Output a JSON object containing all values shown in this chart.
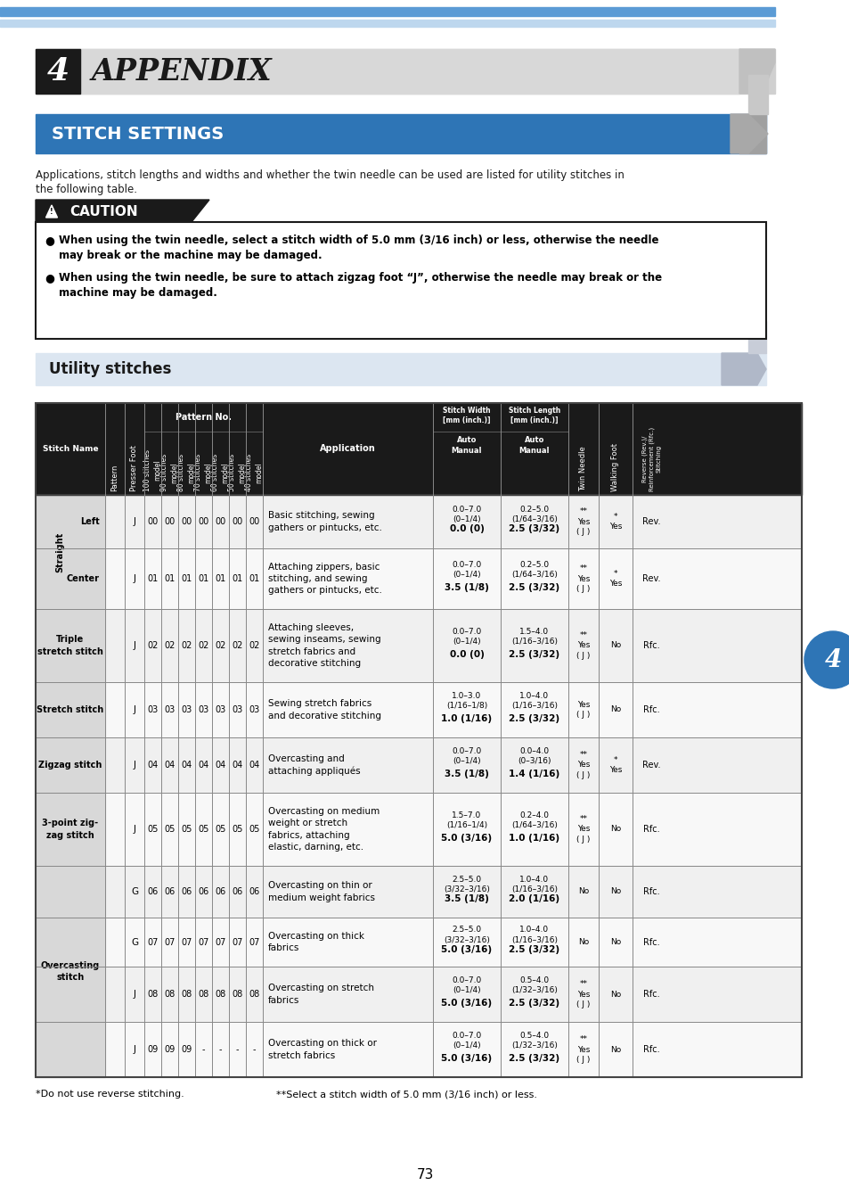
{
  "page_bg": "#ffffff",
  "appendix_number": "4",
  "appendix_title": "APPENDIX",
  "stitch_settings_text": "STITCH SETTINGS",
  "body_text1": "Applications, stitch lengths and widths and whether the twin needle can be used are listed for utility stitches in",
  "body_text2": "the following table.",
  "caution_text": "CAUTION",
  "caution_bullet1a": "When using the twin needle, select a stitch width of 5.0 mm (3/16 inch) or less, otherwise the needle",
  "caution_bullet1b": "may break or the machine may be damaged.",
  "caution_bullet2a": "When using the twin needle, be sure to attach zigzag foot “J”, otherwise the needle may break or the",
  "caution_bullet2b": "machine may be damaged.",
  "utility_text": "Utility stitches",
  "footer_note1": "*Do not use reverse stitching.",
  "footer_note2": "**Select a stitch width of 5.0 mm (3/16 inch) or less.",
  "page_number": "73",
  "rows": [
    {
      "stitch_group": "Straight",
      "stitch_name": "Left",
      "presser": "J",
      "pattern_nos": [
        "00",
        "00",
        "00",
        "00",
        "00",
        "00",
        "00"
      ],
      "application": "Basic stitching, sewing\ngathers or pintucks, etc.",
      "width_top": "0.0 (0)",
      "width_bot": "0.0–7.0\n(0–1/4)",
      "length_top": "2.5 (3/32)",
      "length_bot": "0.2–5.0\n(1/64–3/16)",
      "twin": "**\nYes\n( J )",
      "walking": "*\nYes",
      "reverse": "Rev."
    },
    {
      "stitch_group": "Straight",
      "stitch_name": "Center",
      "presser": "J",
      "pattern_nos": [
        "01",
        "01",
        "01",
        "01",
        "01",
        "01",
        "01"
      ],
      "application": "Attaching zippers, basic\nstitching, and sewing\ngathers or pintucks, etc.",
      "width_top": "3.5 (1/8)",
      "width_bot": "0.0–7.0\n(0–1/4)",
      "length_top": "2.5 (3/32)",
      "length_bot": "0.2–5.0\n(1/64–3/16)",
      "twin": "**\nYes\n( J )",
      "walking": "*\nYes",
      "reverse": "Rev."
    },
    {
      "stitch_group": "Triple\nstretch stitch",
      "stitch_name": "",
      "presser": "J",
      "pattern_nos": [
        "02",
        "02",
        "02",
        "02",
        "02",
        "02",
        "02"
      ],
      "application": "Attaching sleeves,\nsewing inseams, sewing\nstretch fabrics and\ndecorative stitching",
      "width_top": "0.0 (0)",
      "width_bot": "0.0–7.0\n(0–1/4)",
      "length_top": "2.5 (3/32)",
      "length_bot": "1.5–4.0\n(1/16–3/16)",
      "twin": "**\nYes\n( J )",
      "walking": "No",
      "reverse": "Rfc."
    },
    {
      "stitch_group": "Stretch stitch",
      "stitch_name": "",
      "presser": "J",
      "pattern_nos": [
        "03",
        "03",
        "03",
        "03",
        "03",
        "03",
        "03"
      ],
      "application": "Sewing stretch fabrics\nand decorative stitching",
      "width_top": "1.0 (1/16)",
      "width_bot": "1.0–3.0\n(1/16–1/8)",
      "length_top": "2.5 (3/32)",
      "length_bot": "1.0–4.0\n(1/16–3/16)",
      "twin": "Yes\n( J )",
      "walking": "No",
      "reverse": "Rfc."
    },
    {
      "stitch_group": "Zigzag stitch",
      "stitch_name": "",
      "presser": "J",
      "pattern_nos": [
        "04",
        "04",
        "04",
        "04",
        "04",
        "04",
        "04"
      ],
      "application": "Overcasting and\nattaching appliqués",
      "width_top": "3.5 (1/8)",
      "width_bot": "0.0–7.0\n(0–1/4)",
      "length_top": "1.4 (1/16)",
      "length_bot": "0.0–4.0\n(0–3/16)",
      "twin": "**\nYes\n( J )",
      "walking": "*\nYes",
      "reverse": "Rev."
    },
    {
      "stitch_group": "3-point zig-\nzag stitch",
      "stitch_name": "",
      "presser": "J",
      "pattern_nos": [
        "05",
        "05",
        "05",
        "05",
        "05",
        "05",
        "05"
      ],
      "application": "Overcasting on medium\nweight or stretch\nfabrics, attaching\nelastic, darning, etc.",
      "width_top": "5.0 (3/16)",
      "width_bot": "1.5–7.0\n(1/16–1/4)",
      "length_top": "1.0 (1/16)",
      "length_bot": "0.2–4.0\n(1/64–3/16)",
      "twin": "**\nYes\n( J )",
      "walking": "No",
      "reverse": "Rfc."
    },
    {
      "stitch_group": "Overcasting\nstitch",
      "stitch_name": "",
      "presser": "G",
      "pattern_nos": [
        "06",
        "06",
        "06",
        "06",
        "06",
        "06",
        "06"
      ],
      "application": "Overcasting on thin or\nmedium weight fabrics",
      "width_top": "3.5 (1/8)",
      "width_bot": "2.5–5.0\n(3/32–3/16)",
      "length_top": "2.0 (1/16)",
      "length_bot": "1.0–4.0\n(1/16–3/16)",
      "twin": "No",
      "walking": "No",
      "reverse": "Rfc."
    },
    {
      "stitch_group": "Overcasting\nstitch",
      "stitch_name": "",
      "presser": "G",
      "pattern_nos": [
        "07",
        "07",
        "07",
        "07",
        "07",
        "07",
        "07"
      ],
      "application": "Overcasting on thick\nfabrics",
      "width_top": "5.0 (3/16)",
      "width_bot": "2.5–5.0\n(3/32–3/16)",
      "length_top": "2.5 (3/32)",
      "length_bot": "1.0–4.0\n(1/16–3/16)",
      "twin": "No",
      "walking": "No",
      "reverse": "Rfc."
    },
    {
      "stitch_group": "Overcasting\nstitch",
      "stitch_name": "",
      "presser": "J",
      "pattern_nos": [
        "08",
        "08",
        "08",
        "08",
        "08",
        "08",
        "08"
      ],
      "application": "Overcasting on stretch\nfabrics",
      "width_top": "5.0 (3/16)",
      "width_bot": "0.0–7.0\n(0–1/4)",
      "length_top": "2.5 (3/32)",
      "length_bot": "0.5–4.0\n(1/32–3/16)",
      "twin": "**\nYes\n( J )",
      "walking": "No",
      "reverse": "Rfc."
    },
    {
      "stitch_group": "Overcasting\nstitch",
      "stitch_name": "",
      "presser": "J",
      "pattern_nos": [
        "09",
        "09",
        "09",
        "-",
        "-",
        "-",
        "-"
      ],
      "application": "Overcasting on thick or\nstretch fabrics",
      "width_top": "5.0 (3/16)",
      "width_bot": "0.0–7.0\n(0–1/4)",
      "length_top": "2.5 (3/32)",
      "length_bot": "0.5–4.0\n(1/32–3/16)",
      "twin": "**\nYes\n( J )",
      "walking": "No",
      "reverse": "Rfc."
    }
  ]
}
